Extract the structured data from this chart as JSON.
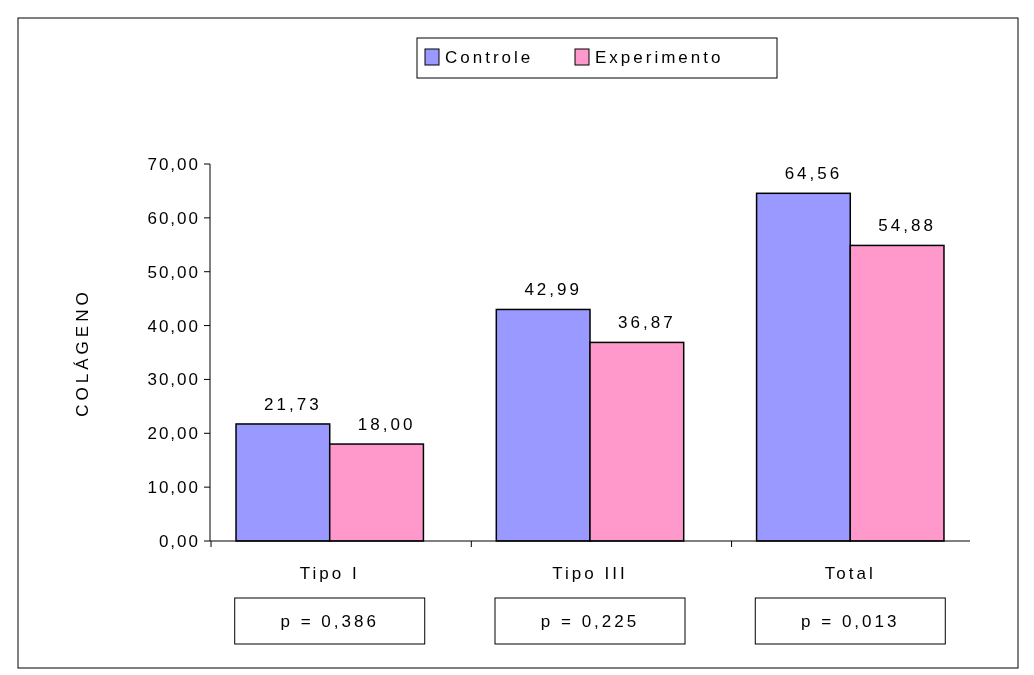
{
  "chart_data": {
    "type": "bar",
    "ylabel": "COLÁGENO",
    "categories": [
      "Tipo I",
      "Tipo III",
      "Total"
    ],
    "series": [
      {
        "name": "Controle",
        "color": "#9999ff",
        "values": [
          21.73,
          42.99,
          64.56
        ],
        "value_labels": [
          "21,73",
          "42,99",
          "64,56"
        ]
      },
      {
        "name": "Experimento",
        "color": "#ff99cc",
        "values": [
          18.0,
          36.87,
          54.88
        ],
        "value_labels": [
          "18,00",
          "36,87",
          "54,88"
        ]
      }
    ],
    "ylim": [
      0,
      70
    ],
    "yticks": [
      {
        "value": 0,
        "label": "0,00"
      },
      {
        "value": 10,
        "label": "10,00"
      },
      {
        "value": 20,
        "label": "20,00"
      },
      {
        "value": 30,
        "label": "30,00"
      },
      {
        "value": 40,
        "label": "40,00"
      },
      {
        "value": 50,
        "label": "50,00"
      },
      {
        "value": 60,
        "label": "60,00"
      },
      {
        "value": 70,
        "label": "70,00"
      }
    ],
    "annotations": [
      "p = 0,386",
      "p = 0,225",
      "p = 0,013"
    ],
    "legend": "top",
    "grid": false
  }
}
